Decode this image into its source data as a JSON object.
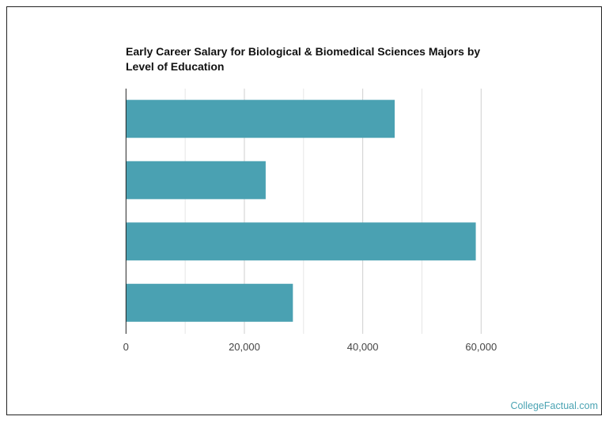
{
  "chart_data": {
    "type": "bar",
    "orientation": "horizontal",
    "title": "Early Career Salary for Biological & Biomedical Sciences Majors by Level of Education",
    "categories": [
      "",
      "",
      "",
      ""
    ],
    "values": [
      45400,
      23600,
      59100,
      28200
    ],
    "xlabel": "",
    "ylabel": "",
    "xlim": [
      0,
      60000
    ],
    "xticks": [
      0,
      20000,
      40000,
      60000
    ],
    "xtick_labels": [
      "0",
      "20,000",
      "40,000",
      "60,000"
    ],
    "minor_grid_step": 10000,
    "grid": true,
    "bar_color": "#4aa1b2"
  },
  "credit": "CollegeFactual.com"
}
